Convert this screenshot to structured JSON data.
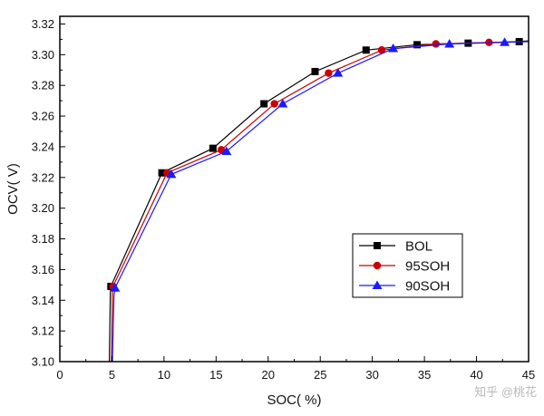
{
  "chart_data": {
    "type": "line",
    "title": "",
    "xlabel": "SOC( %)",
    "ylabel": "OCV( V)",
    "xlim": [
      0,
      45
    ],
    "ylim": [
      3.1,
      3.325
    ],
    "xticks": [
      0,
      5,
      10,
      15,
      20,
      25,
      30,
      35,
      40,
      45
    ],
    "yticks": [
      3.1,
      3.12,
      3.14,
      3.16,
      3.18,
      3.2,
      3.22,
      3.24,
      3.26,
      3.28,
      3.3,
      3.32
    ],
    "legend_position": "bottom-right",
    "series": [
      {
        "name": "BOL",
        "color": "#000000",
        "marker": "square",
        "curve": [
          [
            4.75,
            3.1
          ],
          [
            4.85,
            3.145
          ],
          [
            4.9,
            3.149
          ],
          [
            9.8,
            3.223
          ],
          [
            14.7,
            3.239
          ],
          [
            19.6,
            3.268
          ],
          [
            24.5,
            3.289
          ],
          [
            29.4,
            3.303
          ],
          [
            34.3,
            3.3065
          ],
          [
            39.2,
            3.3075
          ],
          [
            44.1,
            3.3085
          ],
          [
            45,
            3.309
          ]
        ],
        "markers": [
          [
            4.9,
            3.149
          ],
          [
            9.8,
            3.223
          ],
          [
            14.7,
            3.239
          ],
          [
            19.6,
            3.268
          ],
          [
            24.5,
            3.289
          ],
          [
            29.4,
            3.303
          ],
          [
            34.3,
            3.3065
          ],
          [
            39.2,
            3.3075
          ],
          [
            44.1,
            3.3085
          ]
        ]
      },
      {
        "name": "95SOH",
        "color": "#cc0000",
        "marker": "circle",
        "curve": [
          [
            4.95,
            3.1
          ],
          [
            5.05,
            3.144
          ],
          [
            5.1,
            3.149
          ],
          [
            10.3,
            3.223
          ],
          [
            15.5,
            3.238
          ],
          [
            20.6,
            3.268
          ],
          [
            25.8,
            3.288
          ],
          [
            30.9,
            3.303
          ],
          [
            36.1,
            3.307
          ],
          [
            41.2,
            3.308
          ],
          [
            45,
            3.3085
          ]
        ],
        "markers": [
          [
            5.1,
            3.149
          ],
          [
            10.3,
            3.223
          ],
          [
            15.5,
            3.238
          ],
          [
            20.6,
            3.268
          ],
          [
            25.8,
            3.288
          ],
          [
            30.9,
            3.303
          ],
          [
            36.1,
            3.307
          ],
          [
            41.2,
            3.308
          ]
        ]
      },
      {
        "name": "90SOH",
        "color": "#1a1aff",
        "marker": "triangle",
        "curve": [
          [
            5.05,
            3.1
          ],
          [
            5.2,
            3.143
          ],
          [
            5.3,
            3.148
          ],
          [
            10.7,
            3.222
          ],
          [
            16.0,
            3.237
          ],
          [
            21.4,
            3.268
          ],
          [
            26.7,
            3.288
          ],
          [
            32.0,
            3.304
          ],
          [
            37.4,
            3.307
          ],
          [
            42.7,
            3.308
          ],
          [
            45,
            3.3085
          ]
        ],
        "markers": [
          [
            5.3,
            3.148
          ],
          [
            10.7,
            3.222
          ],
          [
            16.0,
            3.237
          ],
          [
            21.4,
            3.268
          ],
          [
            26.7,
            3.288
          ],
          [
            32.0,
            3.304
          ],
          [
            37.4,
            3.307
          ],
          [
            42.7,
            3.308
          ]
        ]
      }
    ]
  },
  "watermark": "知乎 @桃花"
}
